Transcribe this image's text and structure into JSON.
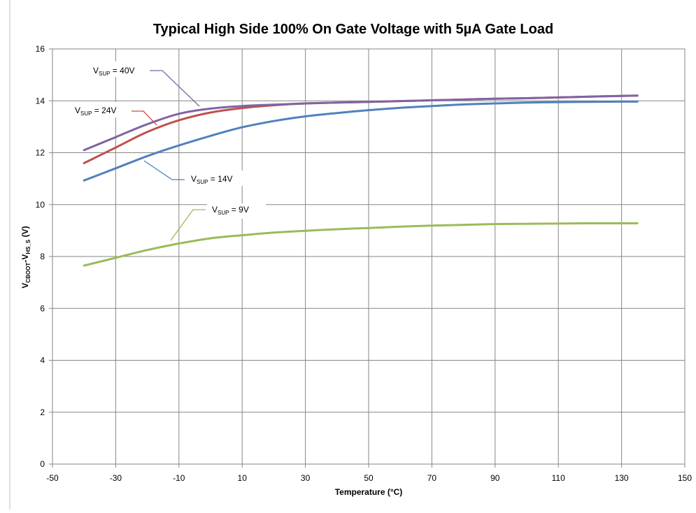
{
  "chart_data": {
    "type": "line",
    "title": "Typical High Side 100% On Gate Voltage with 5µA Gate Load",
    "xlabel": "Temperature (°C)",
    "ylabel_main": "V",
    "ylabel_sub1": "CBOOT",
    "ylabel_mid": "-V",
    "ylabel_sub2": "HS_S",
    "ylabel_unit": " (V)",
    "xlim": [
      -50,
      150
    ],
    "ylim": [
      0,
      16
    ],
    "xticks": [
      -50,
      -30,
      -10,
      10,
      30,
      50,
      70,
      90,
      110,
      130,
      150
    ],
    "yticks": [
      0,
      2,
      4,
      6,
      8,
      10,
      12,
      14,
      16
    ],
    "grid": true,
    "legend": "callout labels",
    "series": [
      {
        "label_prefix": "V",
        "label_sub": "SUP",
        "label_suffix": " = 40V",
        "color": "#8064A2",
        "x": [
          -40,
          -30,
          -20,
          -10,
          0,
          10,
          20,
          30,
          40,
          50,
          60,
          70,
          80,
          90,
          100,
          110,
          120,
          130,
          135
        ],
        "y": [
          12.1,
          12.6,
          13.1,
          13.5,
          13.7,
          13.8,
          13.85,
          13.9,
          13.93,
          13.96,
          13.99,
          14.02,
          14.05,
          14.08,
          14.1,
          14.13,
          14.16,
          14.19,
          14.2
        ]
      },
      {
        "label_prefix": "V",
        "label_sub": "SUP",
        "label_suffix": " = 24V",
        "color": "#C0504D",
        "x": [
          -40,
          -30,
          -20,
          -10,
          0,
          10,
          20,
          30,
          40,
          50,
          60,
          70,
          80,
          90,
          100,
          110,
          120,
          130,
          135
        ],
        "y": [
          11.6,
          12.2,
          12.8,
          13.25,
          13.55,
          13.72,
          13.83,
          13.9,
          13.93,
          13.96,
          13.99,
          14.02,
          14.05,
          14.08,
          14.1,
          14.13,
          14.16,
          14.19,
          14.2
        ]
      },
      {
        "label_prefix": "V",
        "label_sub": "SUP",
        "label_suffix": " = 14V",
        "color": "#4F81BD",
        "x": [
          -40,
          -30,
          -20,
          -10,
          0,
          10,
          20,
          30,
          40,
          50,
          60,
          70,
          80,
          90,
          100,
          110,
          120,
          130,
          135
        ],
        "y": [
          10.93,
          11.4,
          11.87,
          12.28,
          12.65,
          12.98,
          13.22,
          13.4,
          13.53,
          13.64,
          13.73,
          13.8,
          13.86,
          13.9,
          13.93,
          13.95,
          13.96,
          13.97,
          13.97
        ]
      },
      {
        "label_prefix": "V",
        "label_sub": "SUP",
        "label_suffix": " = 9V",
        "color": "#9BBB59",
        "x": [
          -40,
          -30,
          -20,
          -10,
          0,
          10,
          20,
          30,
          40,
          50,
          60,
          70,
          80,
          90,
          100,
          110,
          120,
          130,
          135
        ],
        "y": [
          7.65,
          7.95,
          8.25,
          8.5,
          8.7,
          8.82,
          8.92,
          8.99,
          9.05,
          9.1,
          9.15,
          9.19,
          9.22,
          9.25,
          9.26,
          9.27,
          9.28,
          9.28,
          9.28
        ]
      }
    ]
  }
}
